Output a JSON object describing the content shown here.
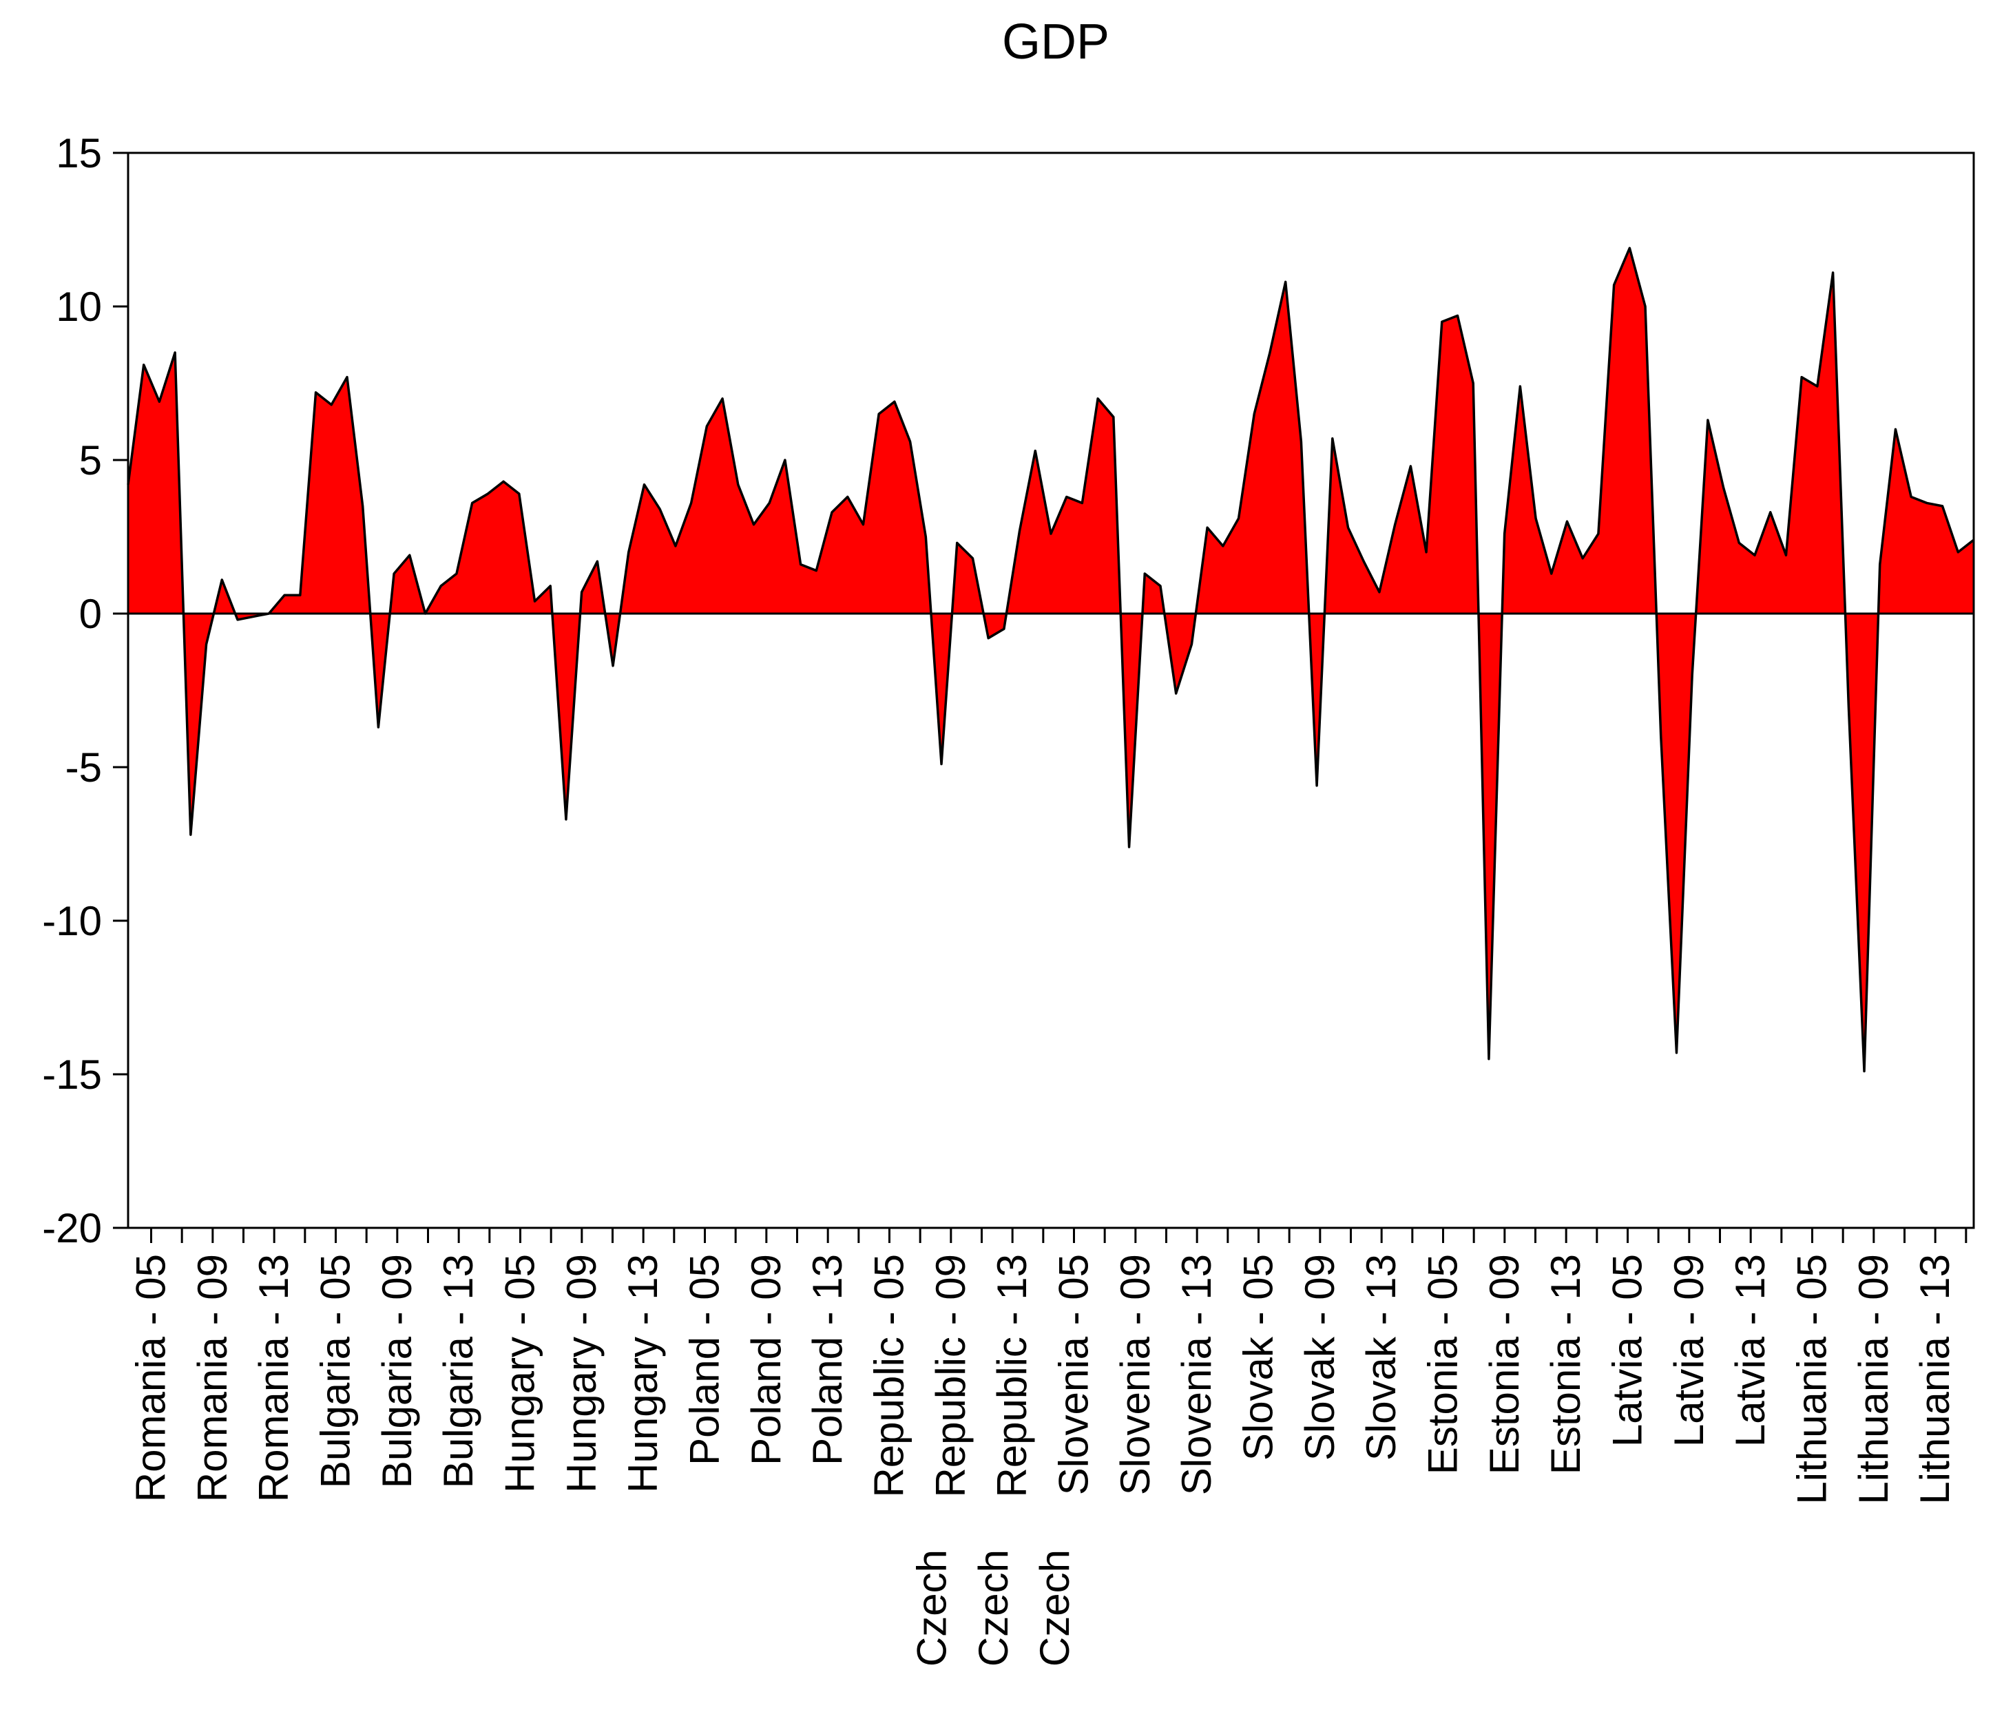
{
  "chart_data": {
    "type": "area",
    "title": "GDP",
    "xlabel": "",
    "ylabel": "",
    "ylim": [
      -20,
      15
    ],
    "yticks": [
      15,
      10,
      5,
      0,
      -5,
      -10,
      -15,
      -20
    ],
    "grid": false,
    "legend": "none",
    "colors": {
      "fill": "#ff0000",
      "line": "#000000",
      "axis": "#000000"
    },
    "series": [
      {
        "name": "GDP",
        "x_range": [
          0,
          120
        ],
        "values": [
          4.2,
          8.1,
          6.9,
          8.5,
          -7.2,
          -1.0,
          1.1,
          -0.2,
          -0.1,
          0.0,
          0.6,
          0.6,
          7.2,
          6.8,
          7.7,
          3.5,
          -3.7,
          1.3,
          1.9,
          0.0,
          0.9,
          1.3,
          3.6,
          3.9,
          4.3,
          3.9,
          0.4,
          0.9,
          -6.7,
          0.7,
          1.7,
          -1.7,
          2.0,
          4.2,
          3.4,
          2.2,
          3.6,
          6.1,
          7.0,
          4.2,
          2.9,
          3.6,
          5.0,
          1.6,
          1.4,
          3.3,
          3.8,
          2.9,
          6.5,
          6.9,
          5.6,
          2.5,
          -4.9,
          2.3,
          1.8,
          -0.8,
          -0.5,
          2.7,
          5.3,
          2.6,
          3.8,
          3.6,
          7.0,
          6.4,
          -7.6,
          1.3,
          0.9,
          -2.6,
          -1.0,
          2.8,
          2.2,
          3.1,
          6.5,
          8.5,
          10.8,
          5.6,
          -5.6,
          5.7,
          2.8,
          1.7,
          0.7,
          2.9,
          4.8,
          2.0,
          9.5,
          9.7,
          7.5,
          -14.5,
          2.6,
          7.4,
          3.1,
          1.3,
          3.0,
          1.8,
          2.6,
          10.7,
          11.9,
          10.0,
          -4.0,
          -14.3,
          -2.0,
          6.3,
          4.1,
          2.3,
          1.9,
          3.3,
          1.9,
          7.7,
          7.4,
          11.1,
          -3.0,
          -14.9,
          1.6,
          6.0,
          3.8,
          3.6,
          3.5,
          2.0,
          2.4
        ]
      }
    ],
    "xtick_labels": [
      {
        "pos": 1.5,
        "line1": "Romania - 05",
        "line2": ""
      },
      {
        "pos": 5.5,
        "line1": "Romania - 09",
        "line2": ""
      },
      {
        "pos": 9.5,
        "line1": "Romania - 13",
        "line2": ""
      },
      {
        "pos": 13.5,
        "line1": "Bulgaria - 05",
        "line2": ""
      },
      {
        "pos": 17.5,
        "line1": "Bulgaria - 09",
        "line2": ""
      },
      {
        "pos": 21.5,
        "line1": "Bulgaria - 13",
        "line2": ""
      },
      {
        "pos": 25.5,
        "line1": "Hungary - 05",
        "line2": ""
      },
      {
        "pos": 29.5,
        "line1": "Hungary - 09",
        "line2": ""
      },
      {
        "pos": 33.5,
        "line1": "Hungary - 13",
        "line2": ""
      },
      {
        "pos": 37.5,
        "line1": "Poland - 05",
        "line2": ""
      },
      {
        "pos": 41.5,
        "line1": "Poland - 09",
        "line2": ""
      },
      {
        "pos": 45.5,
        "line1": "Poland - 13",
        "line2": ""
      },
      {
        "pos": 49.5,
        "line1": "Republic - 05",
        "line2": "Czech"
      },
      {
        "pos": 53.5,
        "line1": "Republic - 09",
        "line2": "Czech"
      },
      {
        "pos": 57.5,
        "line1": "Republic - 13",
        "line2": "Czech"
      },
      {
        "pos": 61.5,
        "line1": "Slovenia - 05",
        "line2": ""
      },
      {
        "pos": 65.5,
        "line1": "Slovenia - 09",
        "line2": ""
      },
      {
        "pos": 69.5,
        "line1": "Slovenia - 13",
        "line2": ""
      },
      {
        "pos": 73.5,
        "line1": "Slovak - 05",
        "line2": ""
      },
      {
        "pos": 77.5,
        "line1": "Slovak - 09",
        "line2": ""
      },
      {
        "pos": 81.5,
        "line1": "Slovak - 13",
        "line2": ""
      },
      {
        "pos": 85.5,
        "line1": "Estonia - 05",
        "line2": ""
      },
      {
        "pos": 89.5,
        "line1": "Estonia - 09",
        "line2": ""
      },
      {
        "pos": 93.5,
        "line1": "Estonia - 13",
        "line2": ""
      },
      {
        "pos": 97.5,
        "line1": "Latvia - 05",
        "line2": ""
      },
      {
        "pos": 101.5,
        "line1": "Latvia - 09",
        "line2": ""
      },
      {
        "pos": 105.5,
        "line1": "Latvia - 13",
        "line2": ""
      },
      {
        "pos": 109.5,
        "line1": "Lithuania - 05",
        "line2": ""
      },
      {
        "pos": 113.5,
        "line1": "Lithuania - 09",
        "line2": ""
      },
      {
        "pos": 117.5,
        "line1": "Lithuania - 13",
        "line2": ""
      }
    ]
  }
}
